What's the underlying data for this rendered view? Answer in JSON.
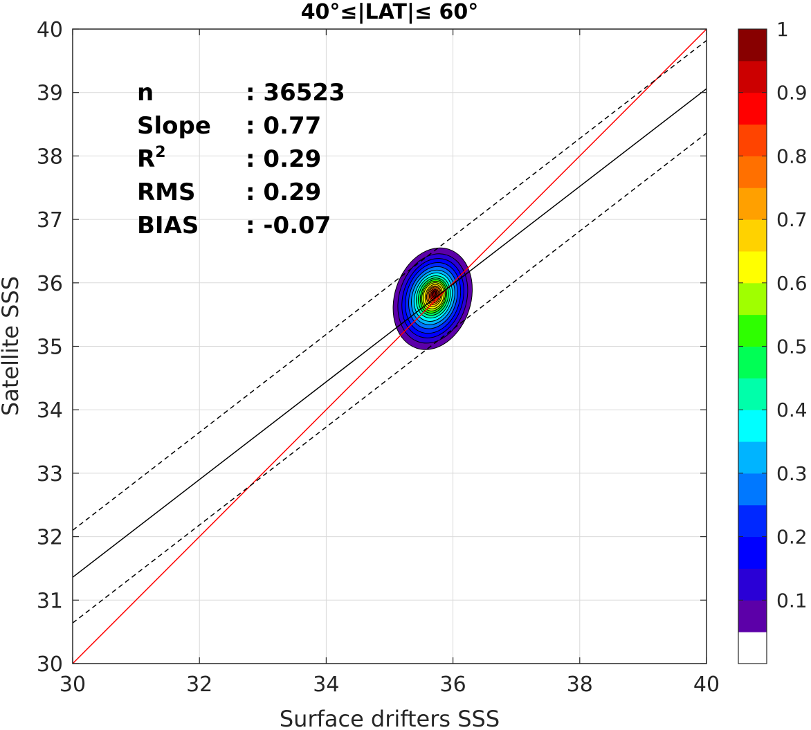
{
  "chart_data": {
    "type": "contour",
    "title": "40°≤|LAT|≤ 60°",
    "xlabel": "Surface drifters SSS",
    "ylabel": "Satellite SSS",
    "xlim": [
      30,
      40
    ],
    "ylim": [
      30,
      40
    ],
    "xticks": [
      "30",
      "32",
      "34",
      "36",
      "38",
      "40"
    ],
    "yticks": [
      "30",
      "31",
      "32",
      "33",
      "34",
      "35",
      "36",
      "37",
      "38",
      "39",
      "40"
    ],
    "grid": true,
    "stats": [
      {
        "label": "n",
        "value": ": 36523"
      },
      {
        "label": "Slope",
        "value": ": 0.77"
      },
      {
        "label": "R",
        "superscript": "2",
        "value": ": 0.29"
      },
      {
        "label": "RMS",
        "value": ": 0.29"
      },
      {
        "label": "BIAS",
        "value": ": -0.07"
      }
    ],
    "lines": [
      {
        "name": "identity",
        "color": "#ff0000",
        "x": [
          30,
          40
        ],
        "y": [
          30,
          40
        ]
      },
      {
        "name": "regression",
        "color": "#000000",
        "style": "solid",
        "x": [
          30,
          40
        ],
        "y": [
          31.36,
          39.06
        ]
      },
      {
        "name": "regression-plus",
        "color": "#000000",
        "style": "dashed",
        "x": [
          30,
          40
        ],
        "y": [
          32.1,
          39.82
        ]
      },
      {
        "name": "regression-minus",
        "color": "#000000",
        "style": "dashed",
        "x": [
          30,
          40
        ],
        "y": [
          30.64,
          38.36
        ]
      }
    ],
    "density_contours": {
      "center": [
        35.68,
        35.75
      ],
      "levels": [
        {
          "level": 0.05,
          "rx": 0.6,
          "ry": 0.82
        },
        {
          "level": 0.1,
          "rx": 0.53,
          "ry": 0.72
        },
        {
          "level": 0.15,
          "rx": 0.47,
          "ry": 0.64
        },
        {
          "level": 0.2,
          "rx": 0.42,
          "ry": 0.57
        },
        {
          "level": 0.25,
          "rx": 0.37,
          "ry": 0.5
        },
        {
          "level": 0.3,
          "rx": 0.33,
          "ry": 0.44
        },
        {
          "level": 0.35,
          "rx": 0.29,
          "ry": 0.39
        },
        {
          "level": 0.4,
          "rx": 0.26,
          "ry": 0.34
        },
        {
          "level": 0.45,
          "rx": 0.23,
          "ry": 0.3
        },
        {
          "level": 0.5,
          "rx": 0.2,
          "ry": 0.27
        },
        {
          "level": 0.55,
          "rx": 0.18,
          "ry": 0.24
        },
        {
          "level": 0.6,
          "rx": 0.16,
          "ry": 0.21
        },
        {
          "level": 0.65,
          "rx": 0.13,
          "ry": 0.18
        },
        {
          "level": 0.7,
          "rx": 0.11,
          "ry": 0.15
        },
        {
          "level": 0.75,
          "rx": 0.09,
          "ry": 0.13
        },
        {
          "level": 0.8,
          "rx": 0.07,
          "ry": 0.1
        },
        {
          "level": 0.85,
          "rx": 0.05,
          "ry": 0.08
        },
        {
          "level": 0.9,
          "rx": 0.035,
          "ry": 0.06
        },
        {
          "level": 0.95,
          "rx": 0.02,
          "ry": 0.04
        }
      ]
    },
    "colorbar": {
      "tick_labels": [
        "0.1",
        "0.2",
        "0.3",
        "0.4",
        "0.5",
        "0.6",
        "0.7",
        "0.8",
        "0.9",
        "1"
      ],
      "tick_values": [
        0.1,
        0.2,
        0.3,
        0.4,
        0.5,
        0.6,
        0.7,
        0.8,
        0.9,
        1.0
      ],
      "colors": [
        "#ffffff",
        "#5c00a8",
        "#2a00d6",
        "#0000ff",
        "#0028ff",
        "#0078ff",
        "#00b4ff",
        "#00ffff",
        "#00ffaa",
        "#00ff55",
        "#2eff00",
        "#a0ff00",
        "#ffff00",
        "#ffd200",
        "#ffa000",
        "#ff7000",
        "#ff4400",
        "#ff0000",
        "#cc0000",
        "#880000"
      ]
    }
  }
}
